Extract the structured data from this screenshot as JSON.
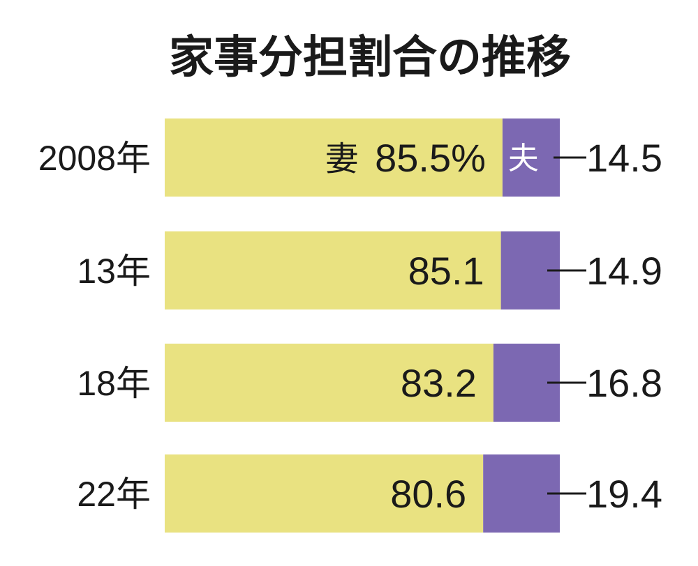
{
  "chart_data": {
    "type": "bar",
    "stacked": true,
    "orientation": "horizontal",
    "title": "家事分担割合の推移",
    "categories": [
      "2008年",
      "13年",
      "18年",
      "22年"
    ],
    "series": [
      {
        "name": "妻",
        "color": "#e9e281",
        "values": [
          85.5,
          85.1,
          83.2,
          80.6
        ],
        "labels": [
          "85.5%",
          "85.1",
          "83.2",
          "80.6"
        ]
      },
      {
        "name": "夫",
        "color": "#7c68b2",
        "values": [
          14.5,
          14.9,
          16.8,
          19.4
        ],
        "labels": [
          "14.5",
          "14.9",
          "16.8",
          "19.4"
        ]
      }
    ],
    "xlim": [
      0,
      100
    ],
    "grid": false
  }
}
